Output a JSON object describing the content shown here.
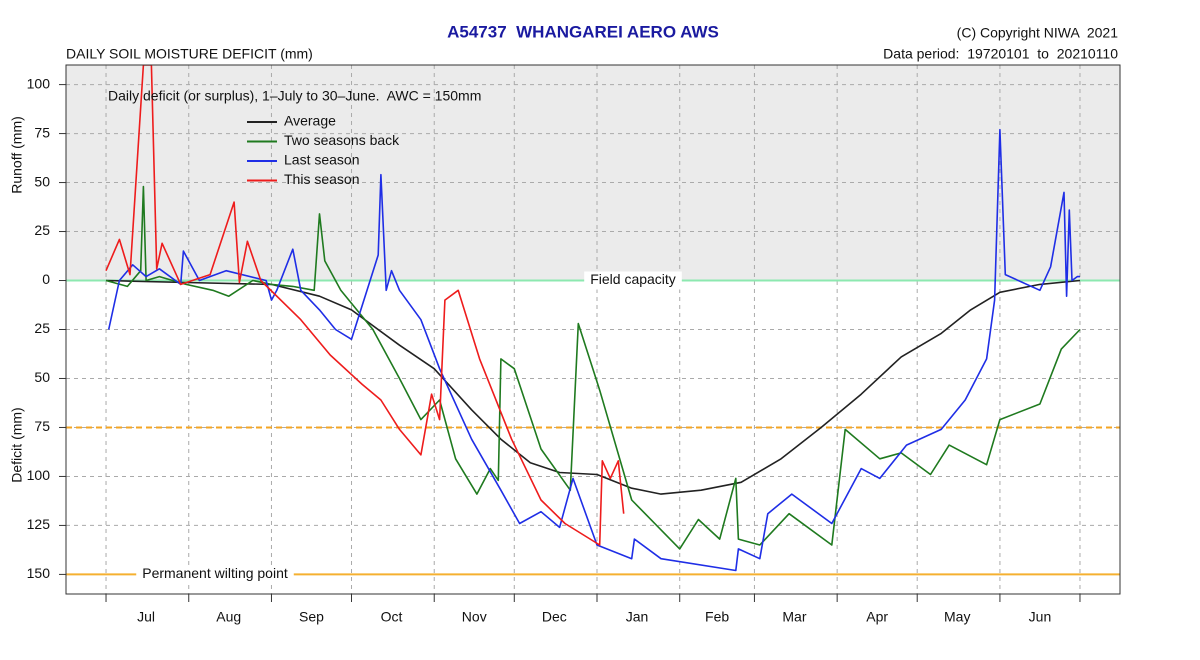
{
  "chart_data": {
    "type": "line",
    "title": "A54737  WHANGAREI AERO AWS",
    "subtitle": "DAILY SOIL MOISTURE DEFICIT (mm)",
    "copyright": "(C) Copyright NIWA  2021",
    "data_period": "Data period:  19720101  to  20210110",
    "annotation": "Daily deficit (or surplus), 1–July to 30–June.  AWC = 150mm",
    "y_label_top": "Runoff (mm)",
    "y_label_bottom": "Deficit (mm)",
    "xlim": [
      -15,
      380
    ],
    "ylim": [
      -160,
      110
    ],
    "xgrid": [
      0,
      31,
      62,
      92,
      123,
      153,
      184,
      215,
      243,
      274,
      304,
      335,
      365
    ],
    "xticks": [
      {
        "value": 15,
        "label": "Jul"
      },
      {
        "value": 46,
        "label": "Aug"
      },
      {
        "value": 77,
        "label": "Sep"
      },
      {
        "value": 107,
        "label": "Oct"
      },
      {
        "value": 138,
        "label": "Nov"
      },
      {
        "value": 168,
        "label": "Dec"
      },
      {
        "value": 199,
        "label": "Jan"
      },
      {
        "value": 229,
        "label": "Feb"
      },
      {
        "value": 258,
        "label": "Mar"
      },
      {
        "value": 289,
        "label": "Apr"
      },
      {
        "value": 319,
        "label": "May"
      },
      {
        "value": 350,
        "label": "Jun"
      }
    ],
    "yticks": [
      100,
      75,
      50,
      25,
      0,
      {
        "value": -25,
        "label": "25"
      },
      {
        "value": -50,
        "label": "50"
      },
      {
        "value": -75,
        "label": "75"
      },
      {
        "value": -100,
        "label": "100"
      },
      {
        "value": -125,
        "label": "125"
      },
      {
        "value": -150,
        "label": "150"
      }
    ],
    "grid": true,
    "surplus_shade": "#ebebeb",
    "reference_lines": [
      {
        "value": 0,
        "label": "Field capacity",
        "color": "#8de8b0",
        "style": "solid"
      },
      {
        "value": -75,
        "color": "#f5a623",
        "style": "dashed"
      },
      {
        "value": -150,
        "label": "Permanent wilting point",
        "color": "#f5b030",
        "style": "solid"
      }
    ],
    "series": [
      {
        "name": "Average",
        "color": "#222222",
        "x": [
          0,
          30,
          62,
          80,
          92,
          110,
          123,
          137,
          148,
          159,
          170,
          184,
          197,
          208,
          223,
          238,
          253,
          268,
          283,
          298,
          313,
          324,
          335,
          350,
          365
        ],
        "values": [
          0,
          -1,
          -2,
          -8,
          -15,
          -33,
          -45,
          -66,
          -81,
          -93,
          -98,
          -99,
          -106,
          -109,
          -107,
          -103,
          -91,
          -75,
          -58,
          -39,
          -27,
          -15,
          -6,
          -2,
          0
        ]
      },
      {
        "name": "Two seasons back",
        "color": "#1f7a1f",
        "x": [
          0,
          8,
          13,
          14,
          15,
          20,
          30,
          40,
          46,
          55,
          62,
          70,
          78,
          80,
          82,
          88,
          100,
          110,
          118,
          125,
          131,
          139,
          144,
          147,
          148,
          153,
          163,
          174,
          177,
          185,
          197,
          215,
          222,
          230,
          236,
          237,
          245,
          256,
          272,
          277,
          290,
          298,
          309,
          316,
          330,
          335,
          350,
          358,
          365
        ],
        "values": [
          0,
          -3,
          5,
          48,
          0,
          2,
          -2,
          -5,
          -8,
          0,
          -2,
          -3,
          -5,
          34,
          10,
          -5,
          -25,
          -50,
          -71,
          -61,
          -91,
          -109,
          -96,
          -102,
          -40,
          -45,
          -86,
          -107,
          -22,
          -56,
          -112,
          -137,
          -122,
          -132,
          -101,
          -132,
          -135,
          -119,
          -135,
          -76,
          -91,
          -88,
          -99,
          -84,
          -94,
          -71,
          -63,
          -35,
          -25
        ]
      },
      {
        "name": "Last season",
        "color": "#1f2ee6",
        "x": [
          1,
          5,
          10,
          15,
          20,
          28,
          29,
          35,
          45,
          60,
          62,
          64,
          70,
          73,
          80,
          86,
          92,
          102,
          103,
          105,
          107,
          110,
          118,
          125,
          137,
          148,
          155,
          163,
          170,
          175,
          184,
          197,
          198,
          208,
          236,
          237,
          245,
          248,
          257,
          272,
          283,
          290,
          300,
          313,
          322,
          330,
          333,
          335,
          337,
          350,
          354,
          359,
          360,
          361,
          362,
          364,
          365
        ],
        "values": [
          -25,
          0,
          8,
          2,
          6,
          -2,
          15,
          0,
          5,
          0,
          -10,
          -5,
          16,
          -5,
          -15,
          -25,
          -30,
          13,
          54,
          -5,
          5,
          -5,
          -20,
          -45,
          -81,
          -107,
          -124,
          -118,
          -126,
          -101,
          -135,
          -142,
          -132,
          -142,
          -148,
          -137,
          -142,
          -119,
          -109,
          -124,
          -96,
          -101,
          -84,
          -76,
          -61,
          -40,
          -10,
          77,
          3,
          -5,
          7,
          45,
          -8,
          36,
          0,
          2,
          2
        ]
      },
      {
        "name": "This season",
        "color": "#ee1c1c",
        "x": [
          0,
          5,
          9,
          14,
          17,
          19,
          21,
          28,
          39,
          48,
          50,
          53,
          58,
          73,
          84,
          96,
          103,
          110,
          118,
          122,
          125,
          127,
          132,
          140,
          152,
          163,
          172,
          185,
          186,
          189,
          192,
          194
        ],
        "values": [
          5,
          21,
          3,
          110,
          110,
          6,
          19,
          -2,
          3,
          40,
          -1,
          20,
          0,
          -20,
          -38,
          -53,
          -61,
          -76,
          -89,
          -58,
          -71,
          -10,
          -5,
          -40,
          -81,
          -112,
          -124,
          -135,
          -92,
          -101,
          -92,
          -119
        ]
      }
    ],
    "legend": "top-left"
  }
}
